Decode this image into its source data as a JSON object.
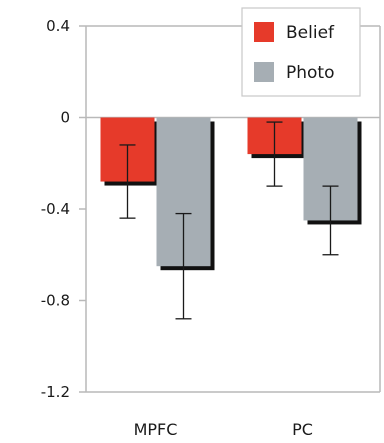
{
  "chart_data": {
    "type": "bar",
    "categories": [
      "MPFC",
      "PC"
    ],
    "series": [
      {
        "name": "Belief",
        "color": "#e63a2a",
        "values": [
          -0.28,
          -0.16
        ],
        "errors": [
          0.16,
          0.14
        ]
      },
      {
        "name": "Photo",
        "color": "#a6aeb4",
        "values": [
          -0.65,
          -0.45
        ],
        "errors": [
          0.23,
          0.15
        ]
      }
    ],
    "ylim": [
      -1.2,
      0.4
    ],
    "yticks": [
      "0.4",
      "0",
      "-0.4",
      "-0.8",
      "-1.2"
    ],
    "grid": false,
    "legend_position": "top-right",
    "error_bars": true,
    "bar_shadow_color": "#111111"
  }
}
